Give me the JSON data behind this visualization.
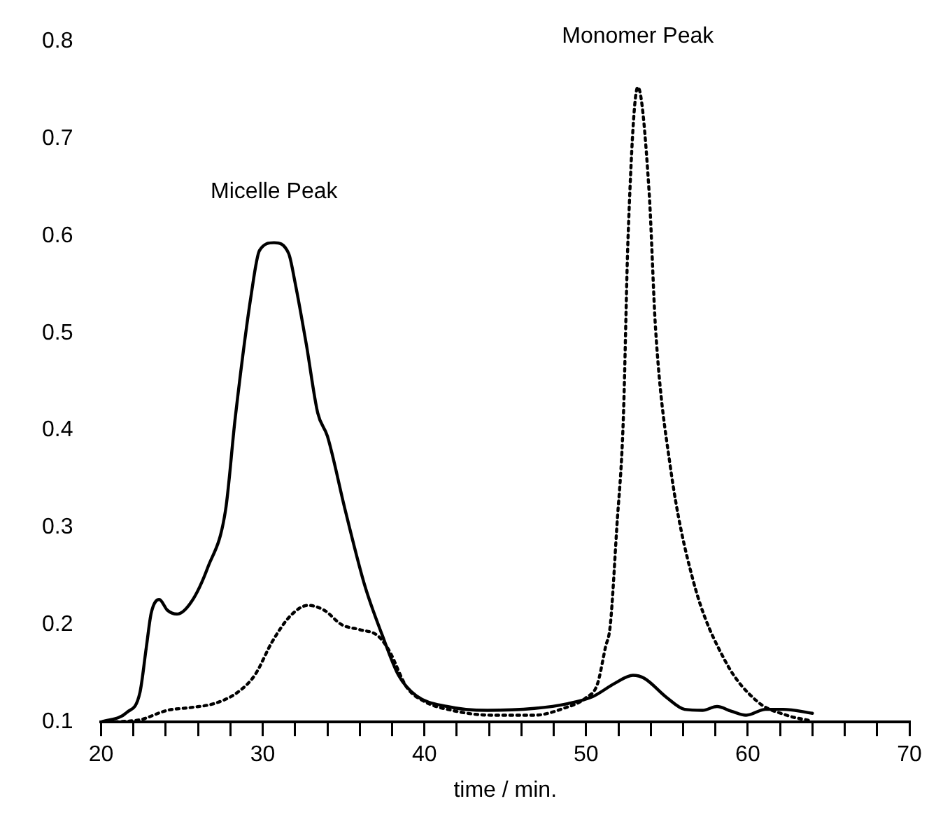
{
  "chart_data": {
    "type": "line",
    "xlabel": "time / min.",
    "xlim": [
      20,
      70
    ],
    "ylim": [
      0.1,
      0.8
    ],
    "xticks": [
      20,
      {
        "value": 22,
        "label": null
      },
      {
        "value": 24,
        "label": null
      },
      {
        "value": 26,
        "label": null
      },
      {
        "value": 28,
        "label": null
      },
      30,
      {
        "value": 32,
        "label": null
      },
      {
        "value": 34,
        "label": null
      },
      {
        "value": 36,
        "label": null
      },
      {
        "value": 38,
        "label": null
      },
      40,
      {
        "value": 42,
        "label": null
      },
      {
        "value": 44,
        "label": null
      },
      {
        "value": 46,
        "label": null
      },
      {
        "value": 48,
        "label": null
      },
      50,
      {
        "value": 52,
        "label": null
      },
      {
        "value": 54,
        "label": null
      },
      {
        "value": 56,
        "label": null
      },
      {
        "value": 58,
        "label": null
      },
      60,
      {
        "value": 62,
        "label": null
      },
      {
        "value": 64,
        "label": null
      },
      {
        "value": 66,
        "label": null
      },
      {
        "value": 68,
        "label": null
      },
      70
    ],
    "yticks": [
      0.1,
      0.2,
      0.3,
      0.4,
      0.5,
      0.6,
      0.7,
      0.8
    ],
    "grid": false,
    "legend": false,
    "marker": "none",
    "annotations": [
      "Micelle Peak",
      "Monomer Peak"
    ],
    "series": [
      {
        "color": "#000000",
        "line_style": "solid",
        "x": [
          20,
          21.6,
          22.4,
          22.8,
          23.1,
          23.6,
          24.1,
          24.7,
          25.6,
          26.6,
          27.7,
          28.3,
          29.3,
          29.8,
          30.7,
          31.6,
          32.0,
          32.7,
          33.4,
          34.0,
          35.1,
          36.3,
          37.4,
          38.4,
          39.5,
          41.4,
          43.9,
          46.8,
          48.9,
          50.4,
          51.8,
          52.9,
          53.6,
          55.0,
          56.1,
          57.2,
          58.1,
          59.0,
          59.9,
          61.1,
          62.2,
          64.0
        ],
        "values": [
          0.1,
          0.11,
          0.13,
          0.177,
          0.212,
          0.226,
          0.215,
          0.211,
          0.224,
          0.259,
          0.318,
          0.413,
          0.541,
          0.585,
          0.593,
          0.582,
          0.552,
          0.488,
          0.418,
          0.394,
          0.318,
          0.241,
          0.189,
          0.148,
          0.127,
          0.116,
          0.112,
          0.114,
          0.119,
          0.126,
          0.14,
          0.148,
          0.145,
          0.125,
          0.113,
          0.112,
          0.116,
          0.111,
          0.107,
          0.113,
          0.113,
          0.109
        ]
      },
      {
        "color": "#000000",
        "line_style": "dotted",
        "x": [
          20,
          22.3,
          24.1,
          25.6,
          27.0,
          28.4,
          29.5,
          30.6,
          31.7,
          32.8,
          33.8,
          34.9,
          36.0,
          37.1,
          37.8,
          38.9,
          39.9,
          41.7,
          44.2,
          46.8,
          48.6,
          50.0,
          50.7,
          51.2,
          51.5,
          51.9,
          52.3,
          52.6,
          53.2,
          53.9,
          54.3,
          55.2,
          56.6,
          58.6,
          60.6,
          62.4,
          64.0
        ],
        "values": [
          0.1,
          0.102,
          0.112,
          0.115,
          0.119,
          0.13,
          0.148,
          0.183,
          0.209,
          0.22,
          0.215,
          0.2,
          0.195,
          0.189,
          0.174,
          0.136,
          0.122,
          0.112,
          0.107,
          0.107,
          0.114,
          0.125,
          0.139,
          0.177,
          0.2,
          0.3,
          0.41,
          0.6,
          0.753,
          0.645,
          0.504,
          0.364,
          0.247,
          0.163,
          0.121,
          0.107,
          0.101
        ]
      }
    ]
  }
}
